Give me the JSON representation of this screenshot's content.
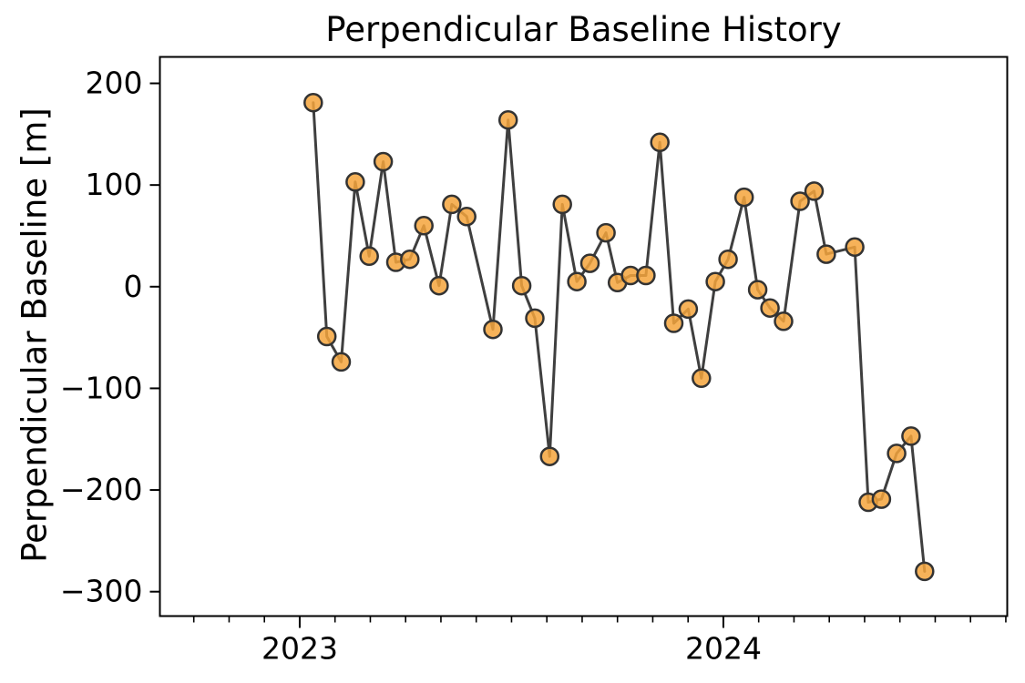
{
  "chart_data": {
    "type": "line",
    "title": "Perpendicular Baseline History",
    "ylabel": "Perpendicular Baseline [m]",
    "xlabel": "",
    "x": [
      2023.032,
      2023.064,
      2023.098,
      2023.131,
      2023.164,
      2023.197,
      2023.227,
      2023.26,
      2023.293,
      2023.329,
      2023.359,
      2023.394,
      2023.456,
      2023.492,
      2023.524,
      2023.555,
      2023.59,
      2023.62,
      2023.654,
      2023.685,
      2023.723,
      2023.75,
      2023.781,
      2023.817,
      2023.85,
      2023.883,
      2023.917,
      2023.948,
      2023.981,
      2024.011,
      2024.049,
      2024.081,
      2024.11,
      2024.142,
      2024.181,
      2024.214,
      2024.243,
      2024.31,
      2024.342,
      2024.373,
      2024.409,
      2024.443,
      2024.475
    ],
    "y": [
      181,
      -49,
      -74,
      103,
      30,
      123,
      24,
      27,
      60,
      1,
      81,
      69,
      -42,
      164,
      1,
      -31,
      -167,
      81,
      5,
      23,
      53,
      4,
      11,
      11,
      142,
      -36,
      -22,
      -90,
      5,
      27,
      88,
      -3,
      -21,
      -34,
      84,
      94,
      32,
      39,
      -212,
      -209,
      -164,
      -147,
      -280
    ],
    "xlim": [
      2022.67,
      2024.67
    ],
    "ylim": [
      -324,
      226
    ],
    "xticks": [
      {
        "value": 2023,
        "label": "2023"
      },
      {
        "value": 2024,
        "label": "2024"
      }
    ],
    "yticks": [
      {
        "value": 200,
        "label": "200"
      },
      {
        "value": 100,
        "label": "100"
      },
      {
        "value": 0,
        "label": "0"
      },
      {
        "value": -100,
        "label": "−100"
      },
      {
        "value": -200,
        "label": "−200"
      },
      {
        "value": -300,
        "label": "−300"
      }
    ],
    "minor_xtick_interval_years": 0.083333,
    "minor_xtick_start": 2022.75,
    "grid": false,
    "legend": null,
    "colors": {
      "line": "#3f3f3f",
      "marker_fill": "#f5a53c",
      "marker_edge": "#333333",
      "spine": "#000000",
      "background": "#ffffff"
    },
    "marker": {
      "shape": "circle",
      "radius": 9.5,
      "edge_width": 2.5,
      "fill_opacity": 0.85
    },
    "line_width": 3
  }
}
